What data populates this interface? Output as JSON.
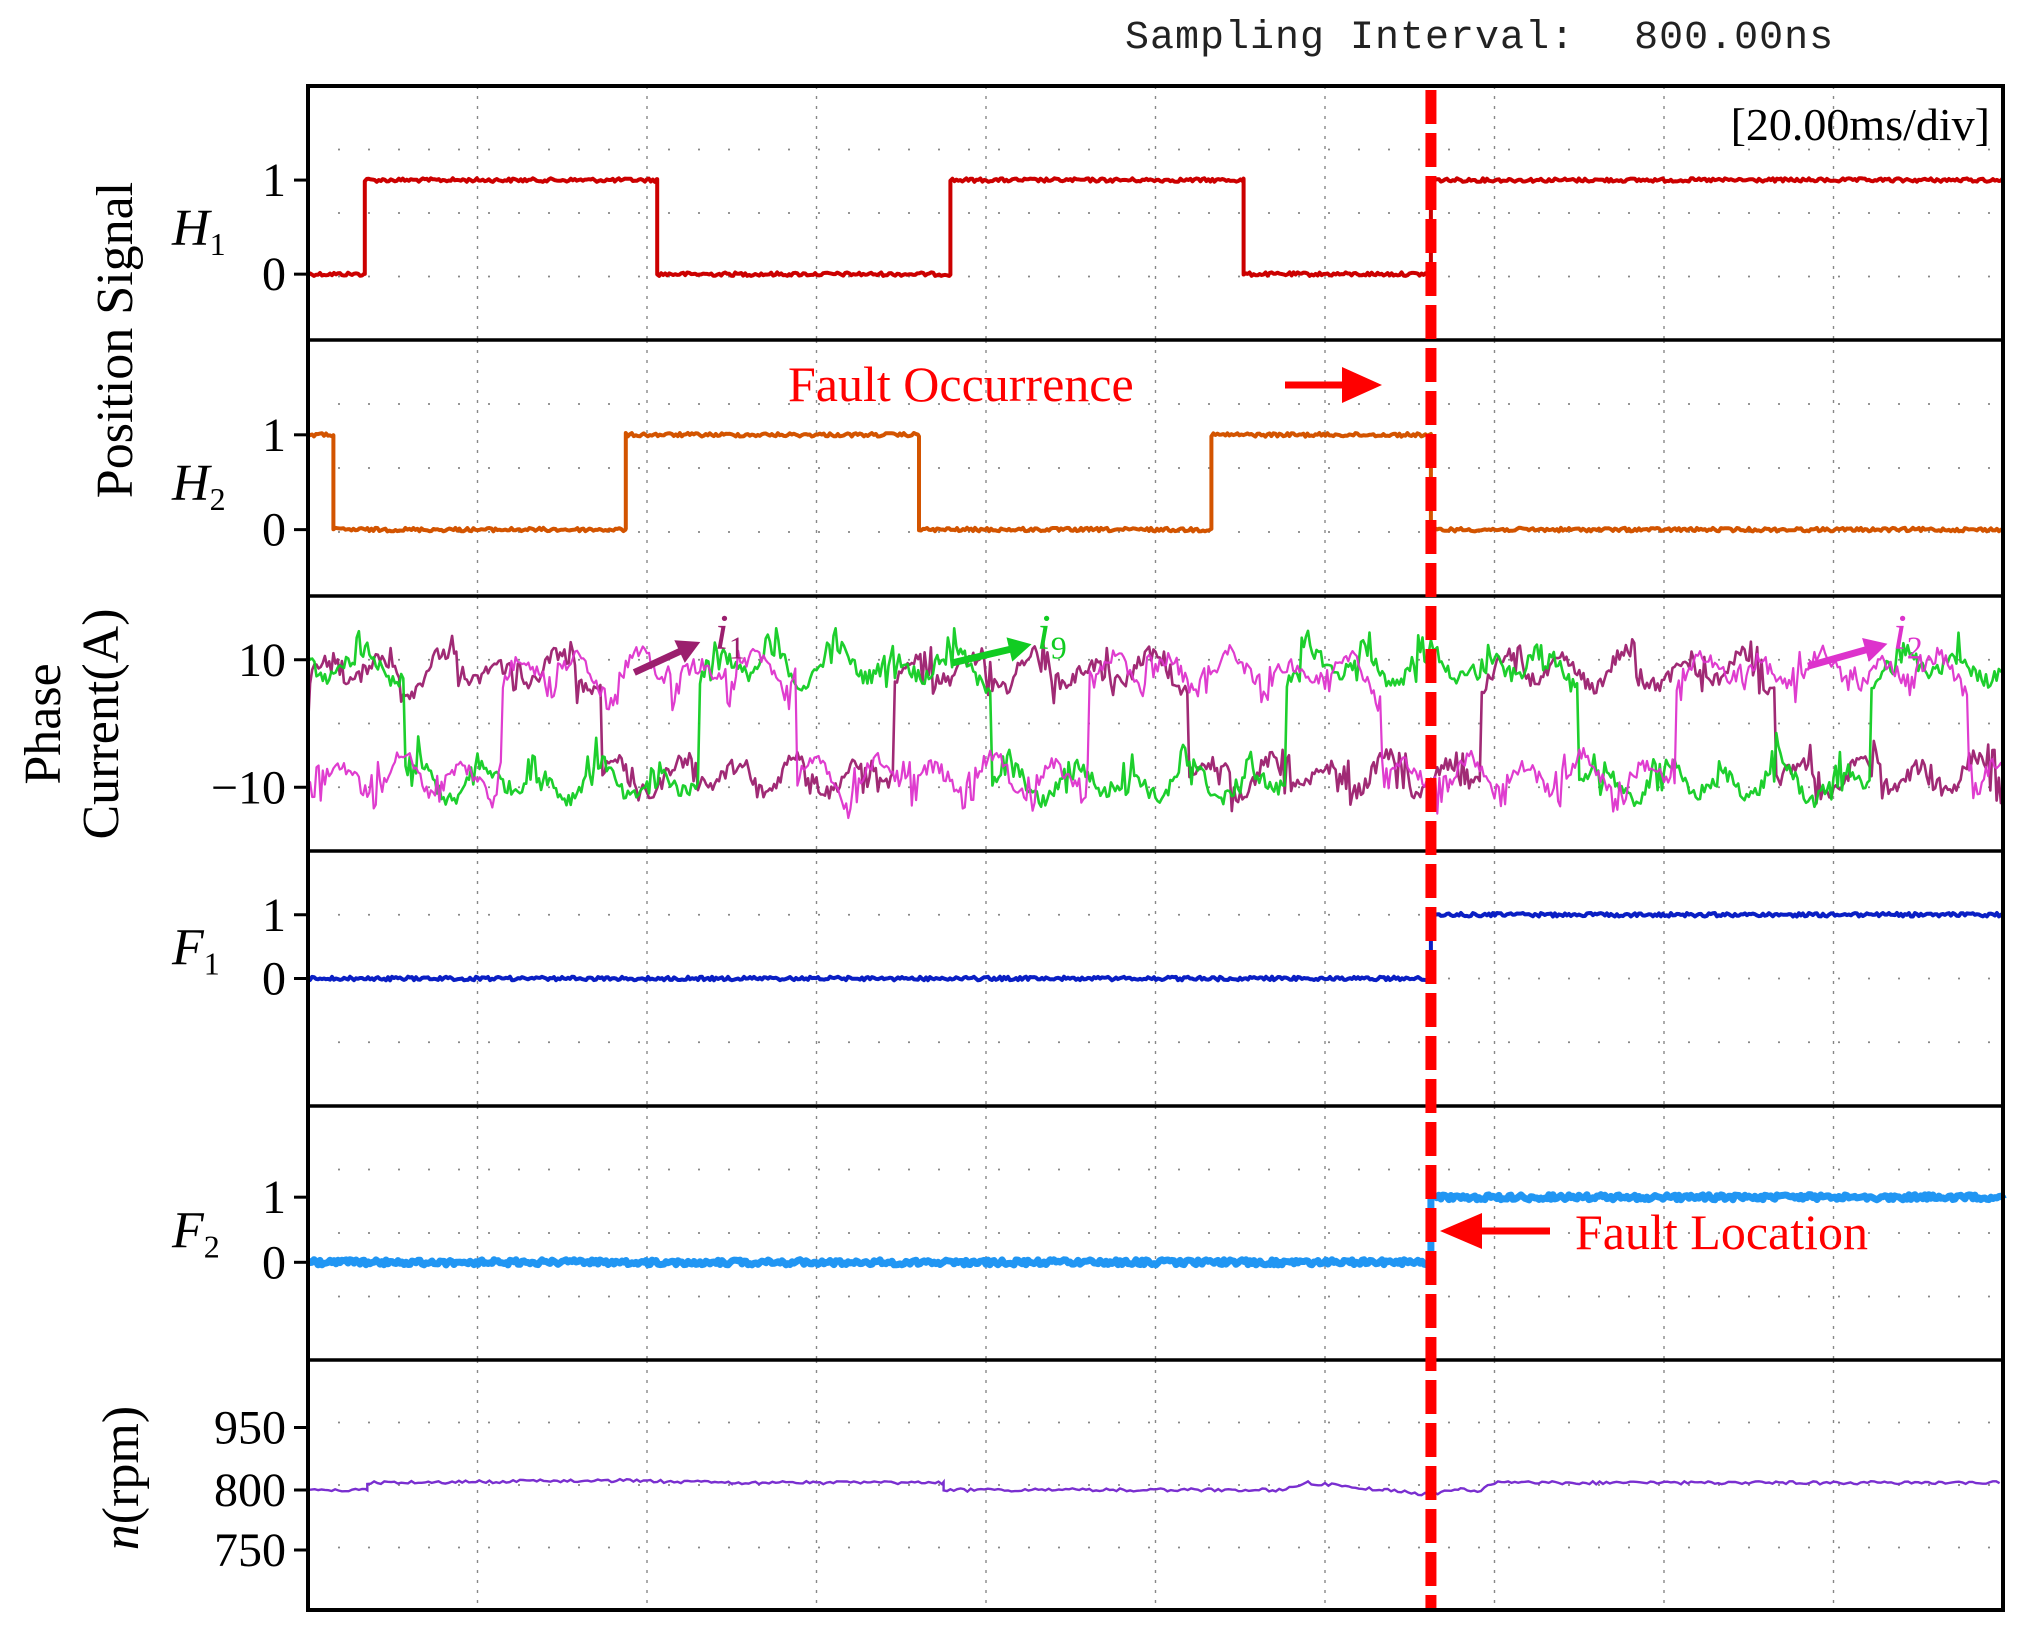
{
  "header": {
    "sampling_label": "Sampling Interval:",
    "sampling_value": "800.00ns",
    "timebase": "[20.00ms/div]"
  },
  "colors": {
    "H1": "#cc0000",
    "H2": "#d35400",
    "i1": "#9b1f6e",
    "i9": "#11cc22",
    "i2": "#dd33cc",
    "F1": "#0a1fc4",
    "F2": "#2196f3",
    "n": "#7a2fd0",
    "fault_marker": "#ff0000",
    "frame": "#000000",
    "grid": "#888888"
  },
  "chart_data": {
    "type": "line",
    "x_unit": "ms",
    "x_range": [
      0,
      200
    ],
    "x_divisions": 10,
    "time_per_div_ms": 20,
    "fault_time_ms": 132.5,
    "grid": true,
    "group_labels": [
      {
        "text": "Position Signal",
        "panels": [
          "H1",
          "H2"
        ]
      },
      {
        "text_lines": [
          "Phase",
          "Current(A)"
        ],
        "panels": [
          "phase_current"
        ]
      },
      {
        "text": "n(rpm)",
        "panels": [
          "speed"
        ]
      }
    ],
    "panels": [
      {
        "id": "H1",
        "label_main": "H",
        "label_sub": "1",
        "yticks": [
          {
            "value": 0,
            "label": "0"
          },
          {
            "value": 1,
            "label": "1"
          }
        ],
        "ylim": [
          -0.7,
          2.0
        ],
        "series": [
          {
            "color_key": "H1",
            "type": "step",
            "segments": [
              [
                0,
                6.7,
                0
              ],
              [
                6.7,
                41.2,
                1
              ],
              [
                41.2,
                75.8,
                0
              ],
              [
                75.8,
                110.4,
                1
              ],
              [
                110.4,
                132.5,
                0
              ],
              [
                132.5,
                200,
                1
              ]
            ]
          }
        ]
      },
      {
        "id": "H2",
        "label_main": "H",
        "label_sub": "2",
        "yticks": [
          {
            "value": 0,
            "label": "0"
          },
          {
            "value": 1,
            "label": "1"
          }
        ],
        "ylim": [
          -0.7,
          2.0
        ],
        "series": [
          {
            "color_key": "H2",
            "type": "step",
            "segments": [
              [
                0,
                3.0,
                1
              ],
              [
                3.0,
                37.5,
                0
              ],
              [
                37.5,
                72.1,
                1
              ],
              [
                72.1,
                106.6,
                0
              ],
              [
                106.6,
                132.5,
                1
              ],
              [
                132.5,
                200,
                0
              ]
            ]
          }
        ]
      },
      {
        "id": "phase_current",
        "yticks": [
          {
            "value": 10,
            "label": "10"
          },
          {
            "value": -10,
            "label": "−10"
          }
        ],
        "ylim": [
          -20,
          20
        ],
        "series": [
          {
            "name": "i1",
            "color_key": "i1",
            "type": "current"
          },
          {
            "name": "i9",
            "color_key": "i9",
            "type": "current"
          },
          {
            "name": "i2",
            "color_key": "i2",
            "type": "current"
          }
        ],
        "annotations": [
          {
            "name_main": "i",
            "name_sub": "1",
            "color_key": "i1",
            "arrow_from": [
              38.5,
              8.0
            ],
            "arrow_to": [
              45.0,
              12.0
            ],
            "text_at": [
              48.0,
              14.0
            ]
          },
          {
            "name_main": "i",
            "name_sub": "9",
            "color_key": "i9",
            "arrow_from": [
              76.0,
              9.5
            ],
            "arrow_to": [
              84.0,
              12.0
            ],
            "text_at": [
              86.0,
              14.0
            ]
          },
          {
            "name_main": "i",
            "name_sub": "2",
            "color_key": "i2",
            "arrow_from": [
              177.0,
              9.0
            ],
            "arrow_to": [
              185.0,
              12.0
            ],
            "text_at": [
              187.0,
              14.0
            ]
          }
        ]
      },
      {
        "id": "F1",
        "label_main": "F",
        "label_sub": "1",
        "yticks": [
          {
            "value": 0,
            "label": "0"
          },
          {
            "value": 1,
            "label": "1"
          }
        ],
        "ylim": [
          -2.0,
          2.0
        ],
        "series": [
          {
            "color_key": "F1",
            "type": "step",
            "segments": [
              [
                0,
                132.5,
                0
              ],
              [
                132.5,
                200,
                1
              ]
            ]
          }
        ]
      },
      {
        "id": "F2",
        "label_main": "F",
        "label_sub": "2",
        "yticks": [
          {
            "value": 0,
            "label": "0"
          },
          {
            "value": 1,
            "label": "1"
          }
        ],
        "ylim": [
          -1.5,
          2.4
        ],
        "series": [
          {
            "color_key": "F2",
            "type": "step",
            "thick": true,
            "segments": [
              [
                0,
                132.5,
                0
              ],
              [
                132.5,
                200,
                1
              ]
            ]
          }
        ]
      },
      {
        "id": "speed",
        "yticks": [
          {
            "value": 950,
            "label": "950"
          },
          {
            "value": 800,
            "label": "800"
          },
          {
            "value": 750,
            "label": "750"
          }
        ],
        "tick_positions": [
          {
            "value": 950,
            "frac": 0.27
          },
          {
            "value": 800,
            "frac": 0.52
          },
          {
            "value": 750,
            "frac": 0.76
          }
        ],
        "series": [
          {
            "color_key": "n",
            "type": "speed",
            "points": [
              [
                0,
                800
              ],
              [
                7,
                800
              ],
              [
                7,
                806
              ],
              [
                36,
                808
              ],
              [
                50,
                806
              ],
              [
                75,
                806
              ],
              [
                75,
                800
              ],
              [
                115,
                800
              ],
              [
                118,
                806
              ],
              [
                127,
                800
              ],
              [
                132.5,
                796
              ],
              [
                136,
                802
              ],
              [
                138,
                798
              ],
              [
                140,
                806
              ],
              [
                200,
                806
              ]
            ]
          }
        ]
      }
    ],
    "annotations": [
      {
        "text": "Fault Occurrence",
        "color_key": "fault_marker",
        "arrow": "right",
        "panel": "H2"
      },
      {
        "text": "Fault Location",
        "color_key": "fault_marker",
        "arrow": "left",
        "panel": "F2"
      }
    ]
  }
}
